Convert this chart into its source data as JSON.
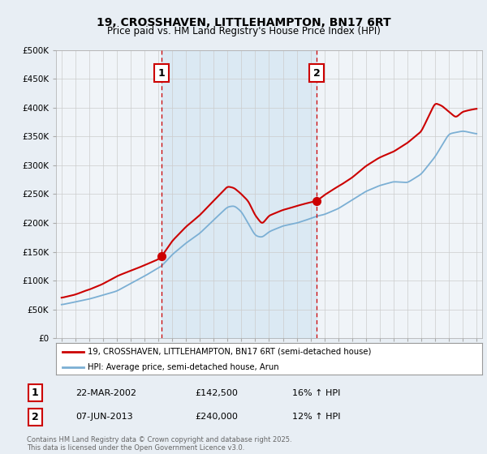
{
  "title": "19, CROSSHAVEN, LITTLEHAMPTON, BN17 6RT",
  "subtitle": "Price paid vs. HM Land Registry's House Price Index (HPI)",
  "legend_line1": "19, CROSSHAVEN, LITTLEHAMPTON, BN17 6RT (semi-detached house)",
  "legend_line2": "HPI: Average price, semi-detached house, Arun",
  "sale1_date": "22-MAR-2002",
  "sale1_price": "£142,500",
  "sale1_pct": "16% ↑ HPI",
  "sale2_date": "07-JUN-2013",
  "sale2_price": "£240,000",
  "sale2_pct": "12% ↑ HPI",
  "footer": "Contains HM Land Registry data © Crown copyright and database right 2025.\nThis data is licensed under the Open Government Licence v3.0.",
  "red_color": "#cc0000",
  "blue_color": "#7bafd4",
  "blue_fill": "#c8dff0",
  "background_color": "#e8eef4",
  "plot_bg_color": "#f0f4f8",
  "ylim": [
    0,
    500000
  ],
  "yticks": [
    0,
    50000,
    100000,
    150000,
    200000,
    250000,
    300000,
    350000,
    400000,
    450000,
    500000
  ],
  "sale1_year": 2002.22,
  "sale2_year": 2013.44,
  "xmin": 1994.6,
  "xmax": 2025.4
}
